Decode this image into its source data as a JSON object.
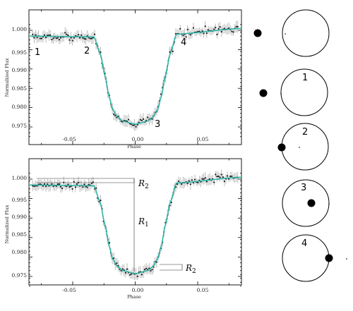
{
  "chart_data": [
    {
      "type": "scatter",
      "title": "",
      "xlabel": "Phase",
      "ylabel": "Normalized Flux",
      "xlim": [
        -0.085,
        0.085
      ],
      "ylim": [
        0.9725,
        1.0025
      ],
      "xticks": [
        "-0.05",
        "0.00",
        "0.05"
      ],
      "yticks": [
        "1.000",
        "0.995",
        "0.990",
        "0.985",
        "0.980",
        "0.975"
      ],
      "grid": false,
      "contacts": [
        {
          "label": "1",
          "x": -0.075,
          "y": 0.9985
        },
        {
          "label": "2",
          "x": -0.033,
          "y": 0.998
        },
        {
          "label": "3",
          "x": 0.015,
          "y": 0.9762
        },
        {
          "label": "4",
          "x": 0.033,
          "y": 0.999
        }
      ],
      "model": {
        "x": [
          -0.085,
          -0.033,
          -0.028,
          -0.024,
          -0.021,
          -0.018,
          -0.014,
          -0.01,
          0.0,
          0.01,
          0.014,
          0.018,
          0.021,
          0.024,
          0.028,
          0.033,
          0.085
        ],
        "y": [
          0.9985,
          0.9983,
          0.994,
          0.988,
          0.983,
          0.9795,
          0.9775,
          0.9765,
          0.9757,
          0.9765,
          0.9775,
          0.9795,
          0.983,
          0.988,
          0.994,
          0.999,
          1.0005
        ]
      },
      "observations": {
        "count": 140,
        "scatter": 0.0008,
        "errorbar": 0.0012
      }
    },
    {
      "type": "scatter",
      "title": "",
      "xlabel": "Phase",
      "ylabel": "Normalized Flux",
      "xlim": [
        -0.085,
        0.085
      ],
      "ylim": [
        0.9725,
        1.0025
      ],
      "xticks": [
        "-0.05",
        "0.00",
        "0.05"
      ],
      "yticks": [
        "1.000",
        "0.995",
        "0.990",
        "0.985",
        "0.980",
        "0.975"
      ],
      "grid": false,
      "annotations": [
        {
          "label": "R",
          "sub": "2",
          "kind": "ingress depth"
        },
        {
          "label": "R",
          "sub": "1",
          "kind": "total depth"
        },
        {
          "label": "R",
          "sub": "2",
          "kind": "egress depth"
        }
      ],
      "model": {
        "x": [
          -0.085,
          -0.033,
          -0.028,
          -0.024,
          -0.021,
          -0.018,
          -0.014,
          -0.01,
          0.0,
          0.01,
          0.014,
          0.018,
          0.021,
          0.024,
          0.028,
          0.033,
          0.085
        ],
        "y": [
          0.9985,
          0.9983,
          0.994,
          0.988,
          0.983,
          0.9795,
          0.9775,
          0.9765,
          0.9757,
          0.9765,
          0.9775,
          0.9795,
          0.983,
          0.988,
          0.994,
          0.999,
          1.0005
        ]
      },
      "observations": {
        "count": 140,
        "scatter": 0.0008,
        "errorbar": 0.0012
      }
    }
  ],
  "transit_diagram": {
    "star_color": "#ffffff",
    "planet_color": "#000000",
    "stages": [
      {
        "label": "",
        "planet_position": "outside-left"
      },
      {
        "label": "1",
        "planet_position": "touching-left-limb"
      },
      {
        "label": "2",
        "planet_position": "inside-left-limb"
      },
      {
        "label": "3",
        "planet_position": "inside-right-limb"
      },
      {
        "label": "4",
        "planet_position": "touching-right-limb"
      }
    ]
  },
  "colors": {
    "model": "#2fb3a6",
    "errorbar": "#a8a8a8",
    "points": "#111111"
  }
}
